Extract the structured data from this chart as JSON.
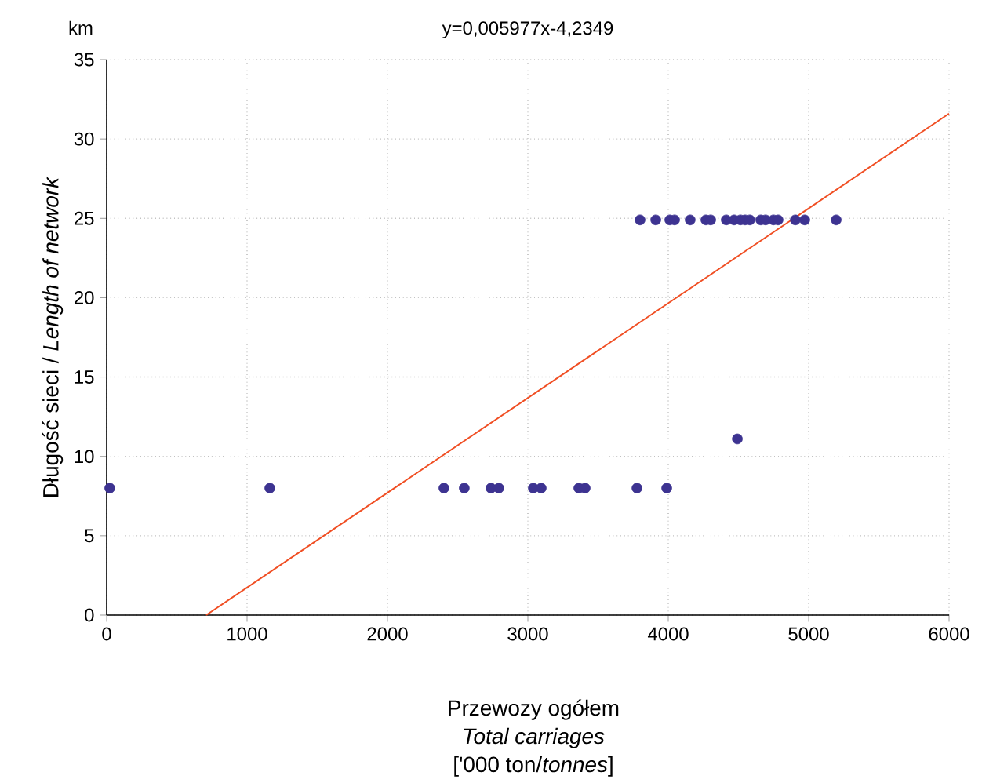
{
  "chart_data": {
    "type": "scatter",
    "title": "y=0,005977x-4,2349",
    "xlabel": "Przewozy ogółem",
    "ylabel": "Długość sieci / *Length of network*",
    "annotations": [
      "km",
      "Total carriages",
      "['000 ton/*tonnes*]"
    ],
    "xlim": [
      0,
      6000
    ],
    "xticks": [
      0,
      1000,
      2000,
      3000,
      4000,
      5000,
      6000
    ],
    "ylim": [
      0,
      35
    ],
    "yticks": [
      0,
      5,
      10,
      15,
      20,
      25,
      30,
      35
    ],
    "grid": true,
    "series": [
      {
        "marker": "circle",
        "color": "#3d3391",
        "x": [
          22,
          1162,
          2402,
          2547,
          2737,
          2793,
          3039,
          3095,
          3363,
          3408,
          3777,
          3989,
          4492,
          3799,
          3911,
          4011,
          4045,
          4156,
          4268,
          4302,
          4413,
          4469,
          4514,
          4547,
          4581,
          4659,
          4693,
          4749,
          4782,
          4905,
          4961,
          4972,
          5196
        ],
        "values": [
          8,
          8,
          8,
          8,
          8,
          8,
          8,
          8,
          8,
          8,
          8,
          8,
          11.1,
          24.9,
          24.9,
          24.9,
          24.9,
          24.9,
          24.9,
          24.9,
          24.9,
          24.9,
          24.9,
          24.9,
          24.9,
          24.9,
          24.9,
          24.9,
          24.9,
          24.9,
          null,
          24.9,
          24.9
        ]
      },
      {
        "type": "line",
        "marker": "none",
        "color": "#f04e23",
        "x": [
          709,
          6000
        ],
        "values": [
          0,
          31.6
        ]
      }
    ]
  }
}
